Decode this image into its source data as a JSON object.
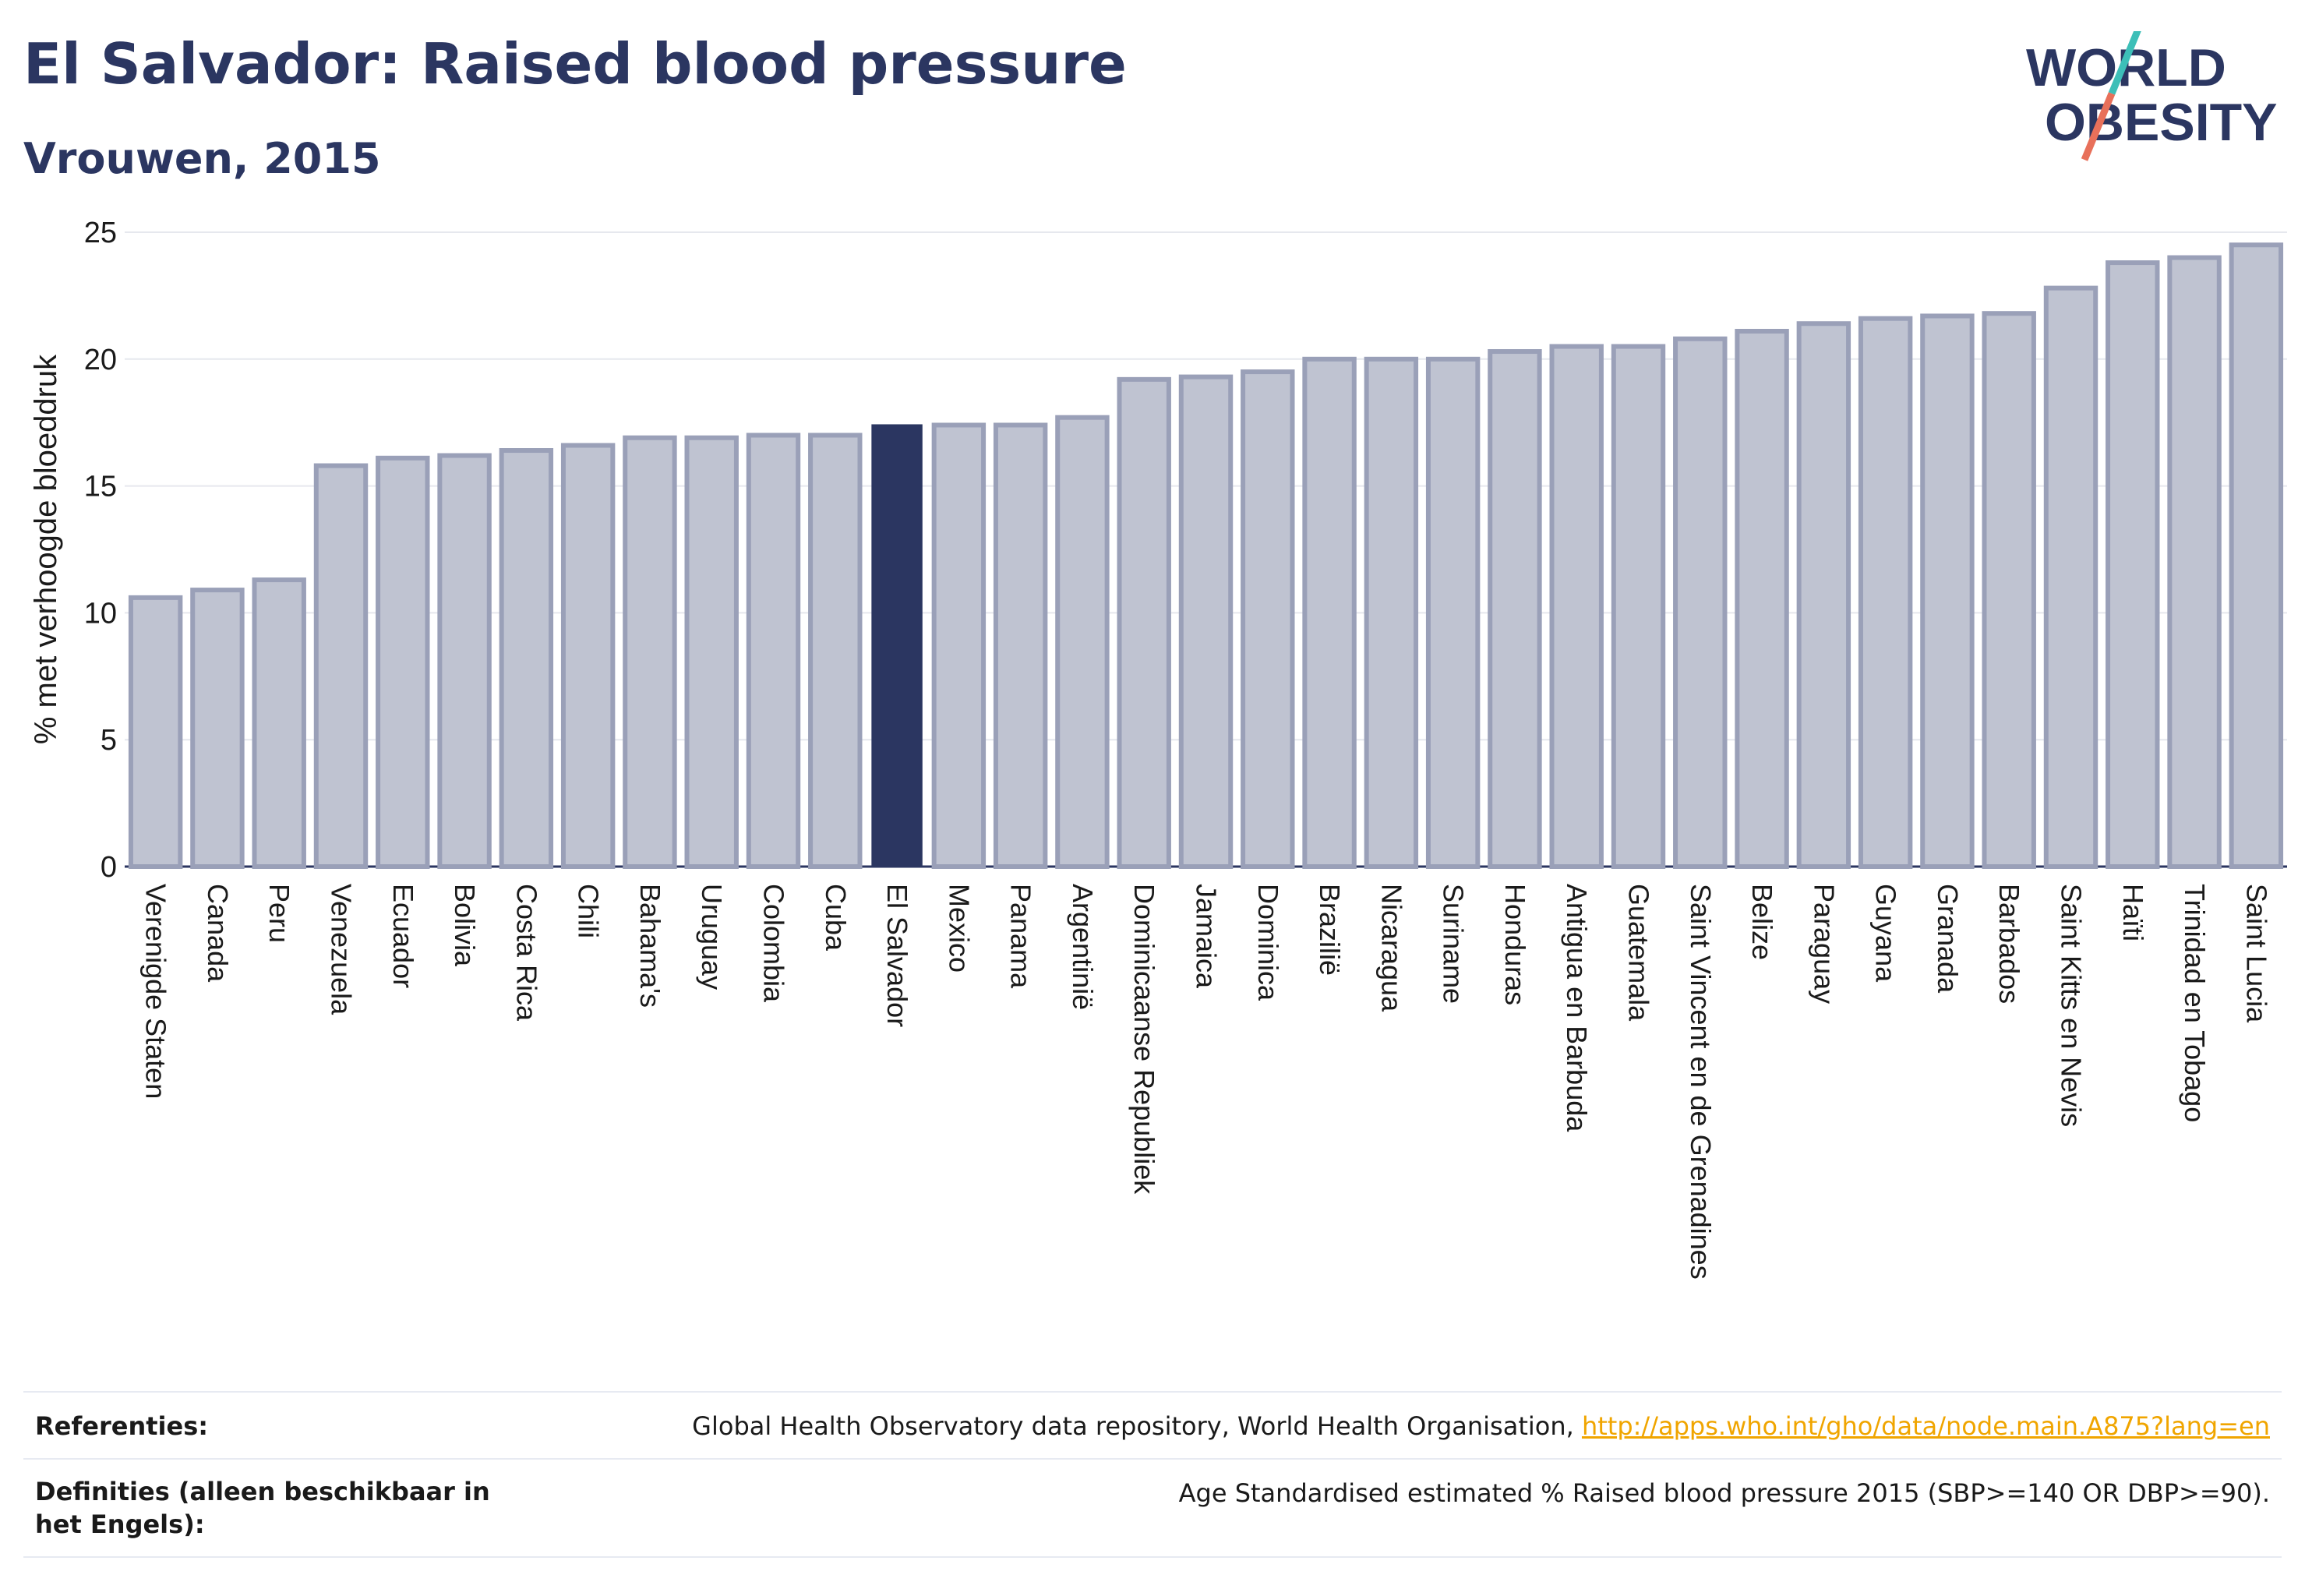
{
  "header": {
    "title": "El Salvador: Raised blood pressure",
    "subtitle": "Vrouwen, 2015"
  },
  "logo": {
    "line1": "WORLD",
    "line2": "OBESITY",
    "accent_teal": "#3dbfb8",
    "accent_coral": "#e8705a"
  },
  "colors": {
    "bar": "#bfc3d1",
    "bar_border": "#9aa0b8",
    "highlight": "#2b3661",
    "grid": "#e6e8ee",
    "axis_text": "#1a1a1a"
  },
  "chart_data": {
    "type": "bar",
    "ylabel": "% met verhoogde bloeddruk",
    "ylim": [
      0,
      25
    ],
    "yticks": [
      0,
      5,
      10,
      15,
      20,
      25
    ],
    "grid": true,
    "highlight": "El Salvador",
    "categories": [
      "Verenigde Staten",
      "Canada",
      "Peru",
      "Venezuela",
      "Ecuador",
      "Bolivia",
      "Costa Rica",
      "Chili",
      "Bahama's",
      "Uruguay",
      "Colombia",
      "Cuba",
      "El Salvador",
      "Mexico",
      "Panama",
      "Argentinië",
      "Dominicaanse Republiek",
      "Jamaica",
      "Dominica",
      "Brazilië",
      "Nicaragua",
      "Suriname",
      "Honduras",
      "Antigua en Barbuda",
      "Guatemala",
      "Saint Vincent en de Grenadines",
      "Belize",
      "Paraguay",
      "Guyana",
      "Granada",
      "Barbados",
      "Saint Kitts en Nevis",
      "Haïti",
      "Trinidad en Tobago",
      "Saint Lucia"
    ],
    "values": [
      10.6,
      10.9,
      11.3,
      15.8,
      16.1,
      16.2,
      16.4,
      16.6,
      16.9,
      16.9,
      17.0,
      17.0,
      17.4,
      17.4,
      17.4,
      17.7,
      19.2,
      19.3,
      19.5,
      20.0,
      20.0,
      20.0,
      20.3,
      20.5,
      20.5,
      20.8,
      21.1,
      21.4,
      21.6,
      21.7,
      21.8,
      22.8,
      23.8,
      24.0,
      24.5
    ]
  },
  "references": {
    "label": "Referenties:",
    "text": "Global Health Observatory data repository, World Health Organisation,",
    "link": "http://apps.who.int/gho/data/node.main.A875?lang=en"
  },
  "definitions": {
    "label": "Definities (alleen beschikbaar in het Engels):",
    "text": "Age Standardised estimated % Raised blood pressure 2015 (SBP>=140 OR DBP>=90)."
  }
}
